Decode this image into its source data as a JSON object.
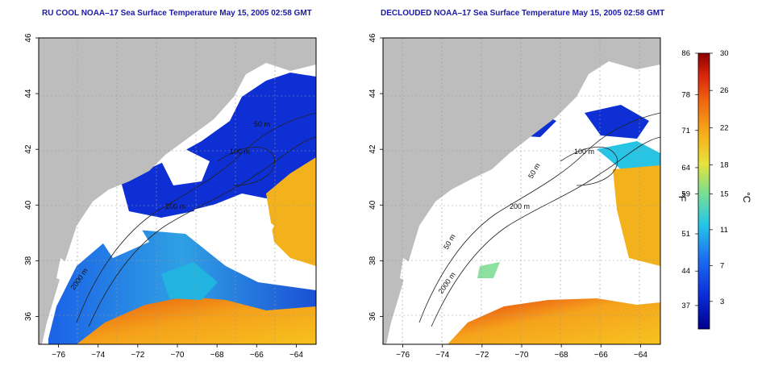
{
  "maps": [
    {
      "title": "RU COOL NOAA–17 Sea Surface Temperature May 15, 2005 02:58 GMT",
      "contour_labels": [
        "50 m",
        "100 m",
        "200 m",
        "2000 m"
      ]
    },
    {
      "title": "DECLOUDED NOAA–17 Sea Surface Temperature May 15, 2005 02:58 GMT",
      "contour_labels": [
        "50 m",
        "100 m",
        "200 m",
        "2000 m"
      ]
    }
  ],
  "axes": {
    "x_ticks": [
      "−76",
      "−74",
      "−72",
      "−70",
      "−68",
      "−66",
      "−64"
    ],
    "y_ticks": [
      "36",
      "38",
      "40",
      "42",
      "44",
      "46"
    ],
    "xlim": [
      -77,
      -63
    ],
    "ylim": [
      35,
      46
    ]
  },
  "colorbar": {
    "f_label": "°F",
    "c_label": "°C",
    "f_ticks": [
      "86",
      "78",
      "71",
      "64",
      "59",
      "51",
      "44",
      "37"
    ],
    "c_ticks": [
      "30",
      "26",
      "22",
      "18",
      "15",
      "11",
      "7",
      "3"
    ],
    "range_c": [
      0,
      30
    ]
  },
  "colors": {
    "land": "#bdbdbd",
    "cloud": "#ffffff",
    "title": "#1a1aa6"
  }
}
